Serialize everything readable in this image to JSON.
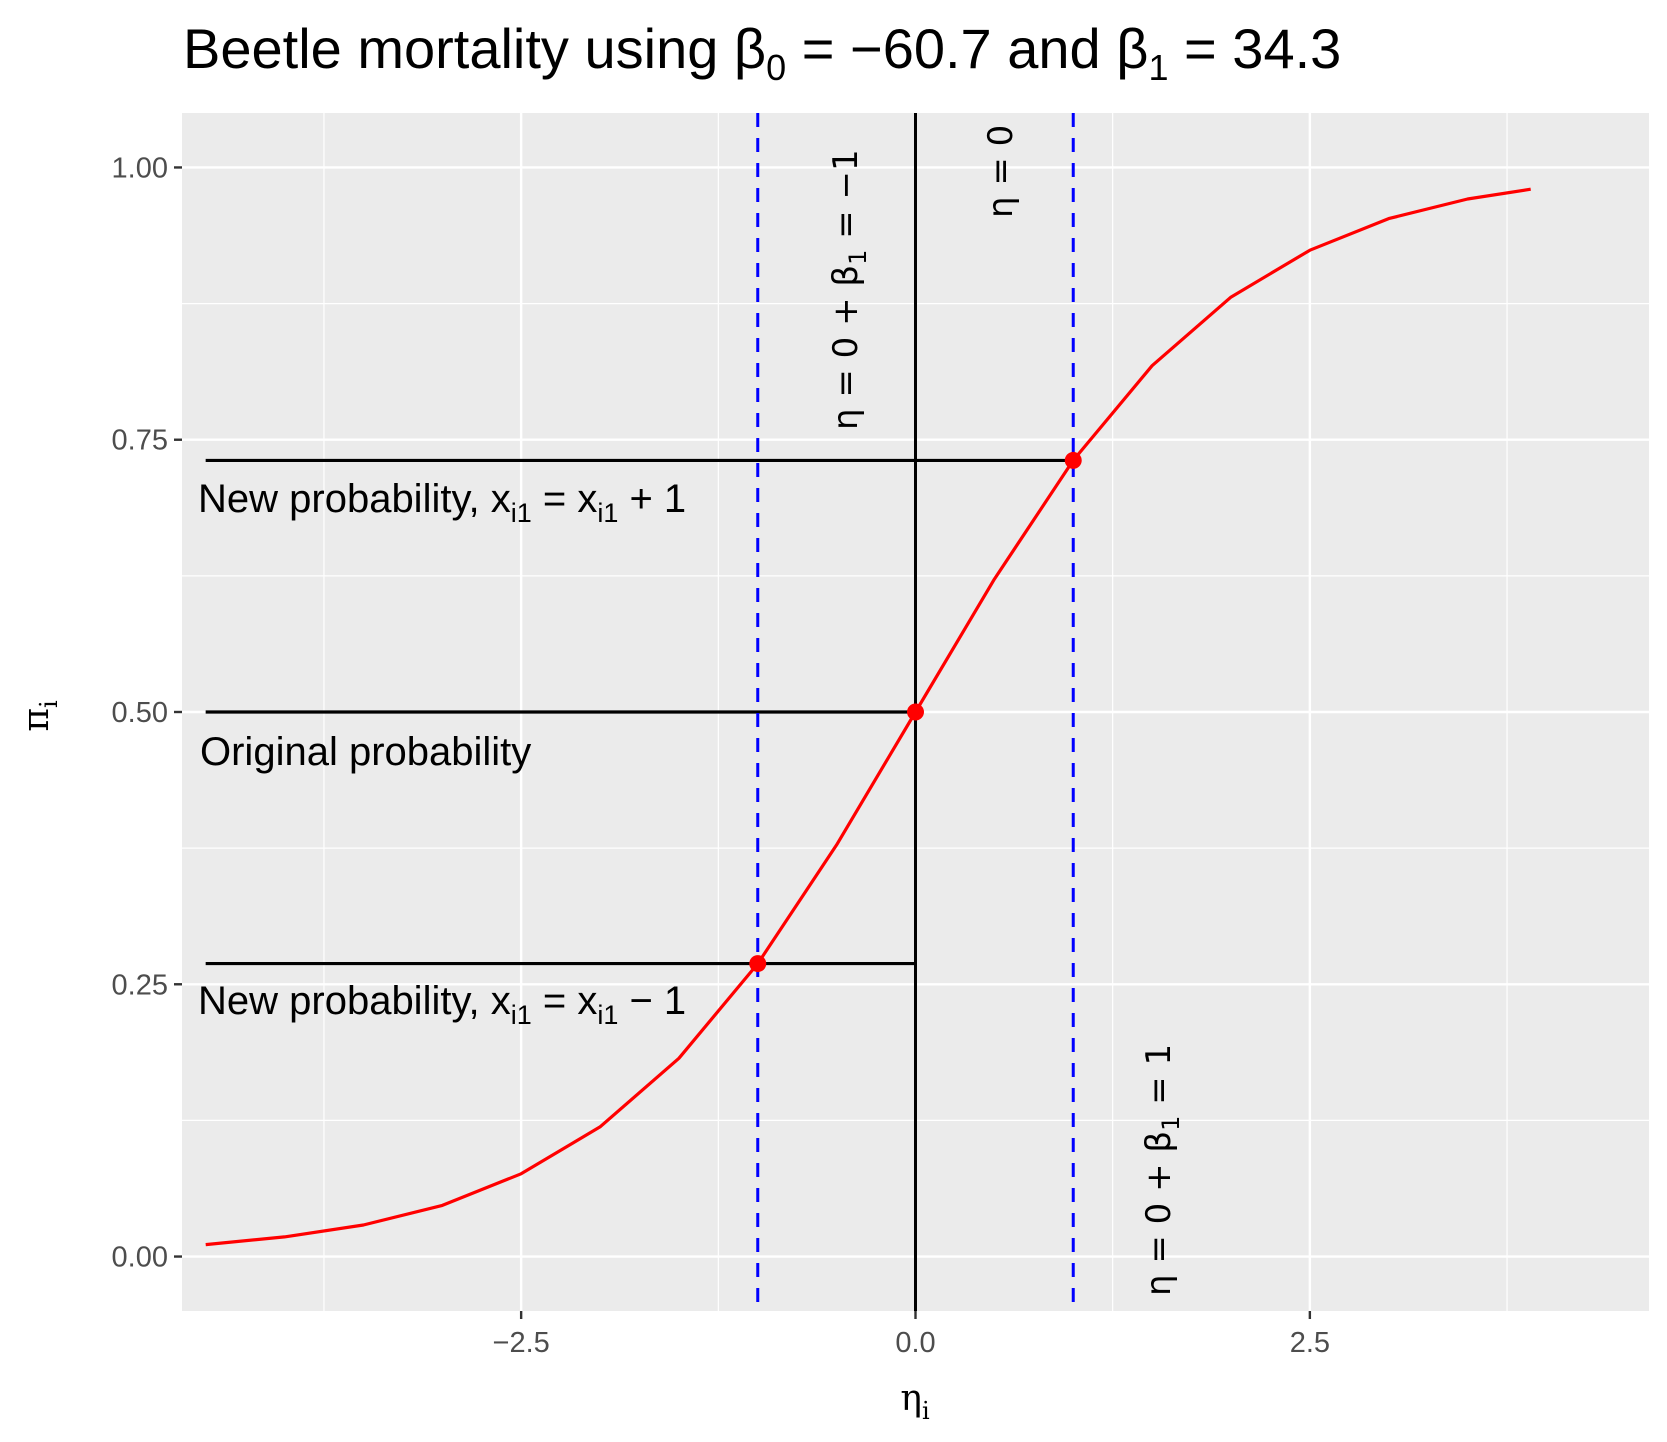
{
  "chart_data": {
    "type": "line",
    "title": "Beetle mortality using β₀ = −60.7 and β₁ = 34.3",
    "title_parts": [
      "Beetle mortality using β",
      "0",
      " = −60.7 and β",
      "1",
      " = 34.3"
    ],
    "xlabel": "ηᵢ",
    "xlabel_parts": [
      "η",
      "i"
    ],
    "ylabel": "πᵢ",
    "ylabel_parts": [
      "π",
      "i"
    ],
    "xlim": [
      -4.65,
      4.65
    ],
    "ylim": [
      -0.05,
      1.05
    ],
    "x_ticks": [
      -2.5,
      0.0,
      2.5
    ],
    "x_tick_labels": [
      "−2.5",
      "0.0",
      "2.5"
    ],
    "y_ticks": [
      0.0,
      0.25,
      0.5,
      0.75,
      1.0
    ],
    "y_tick_labels": [
      "0.00",
      "0.25",
      "0.50",
      "0.75",
      "1.00"
    ],
    "grid": true,
    "series": [
      {
        "color": "#ff0000",
        "x": [
          -4.5,
          -4.0,
          -3.5,
          -3.0,
          -2.5,
          -2.0,
          -1.5,
          -1.0,
          -0.5,
          0.0,
          0.5,
          1.0,
          1.5,
          2.0,
          2.5,
          3.0,
          3.5,
          3.9
        ],
        "y": [
          0.011,
          0.018,
          0.029,
          0.047,
          0.076,
          0.119,
          0.182,
          0.269,
          0.378,
          0.5,
          0.622,
          0.731,
          0.818,
          0.881,
          0.924,
          0.953,
          0.971,
          0.98
        ]
      }
    ],
    "points": [
      {
        "x": -1.0,
        "y": 0.269
      },
      {
        "x": 0.0,
        "y": 0.5
      },
      {
        "x": 1.0,
        "y": 0.731
      }
    ],
    "vlines": [
      {
        "x": -1.0,
        "style": "dashed",
        "color": "#0000ff"
      },
      {
        "x": 0.0,
        "style": "solid",
        "color": "#000000"
      },
      {
        "x": 1.0,
        "style": "dashed",
        "color": "#0000ff"
      }
    ],
    "hsegments": [
      {
        "x_from": -4.5,
        "x_to": 1.0,
        "y": 0.731
      },
      {
        "x_from": -4.5,
        "x_to": 0.0,
        "y": 0.5
      },
      {
        "x_from": -4.5,
        "x_to": 0.0,
        "y": 0.269
      }
    ],
    "annotations": {
      "new_plus": [
        "New probability, x",
        "i1",
        " = x",
        "i1",
        " + 1"
      ],
      "original": "Original probability",
      "new_minus": [
        "New probability, x",
        "i1",
        " = x",
        "i1",
        " − 1"
      ],
      "eta_minus": [
        "η = 0 + β",
        "1",
        " = −1"
      ],
      "eta_zero": "η = 0",
      "eta_plus": [
        "η = 0 + β",
        "1",
        " = 1"
      ]
    }
  }
}
